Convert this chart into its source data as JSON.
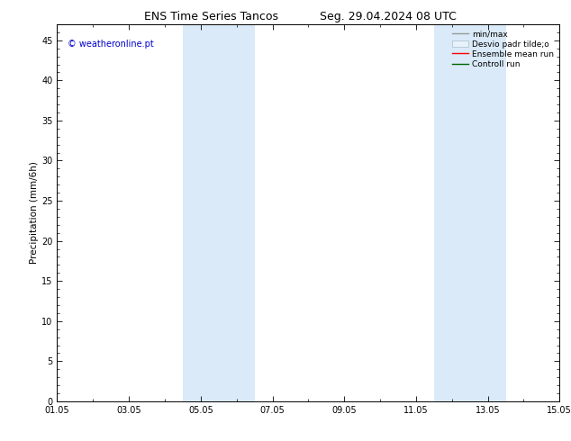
{
  "title_left": "ENS Time Series Tancos",
  "title_right": "Seg. 29.04.2024 08 UTC",
  "ylabel": "Precipitation (mm/6h)",
  "watermark": "© weatheronline.pt",
  "watermark_color": "#0000cc",
  "xlim_start": 0,
  "xlim_end": 14,
  "ylim_min": 0,
  "ylim_max": 47,
  "yticks": [
    0,
    5,
    10,
    15,
    20,
    25,
    30,
    35,
    40,
    45
  ],
  "xtick_labels": [
    "01.05",
    "03.05",
    "05.05",
    "07.05",
    "09.05",
    "11.05",
    "13.05",
    "15.05"
  ],
  "xtick_positions": [
    0,
    2,
    4,
    6,
    8,
    10,
    12,
    14
  ],
  "shaded_bands": [
    {
      "x_start": 3.5,
      "x_end": 5.5
    },
    {
      "x_start": 10.5,
      "x_end": 12.5
    }
  ],
  "shade_color": "#daeaf8",
  "background_color": "#ffffff",
  "legend_items": [
    {
      "label": "min/max",
      "color": "#999999",
      "lw": 1.0,
      "ls": "-",
      "type": "line"
    },
    {
      "label": "Desvio padr tilde;o",
      "color": "#ccddee",
      "lw": 4,
      "ls": "-",
      "type": "bar"
    },
    {
      "label": "Ensemble mean run",
      "color": "#ff0000",
      "lw": 1.0,
      "ls": "-",
      "type": "line"
    },
    {
      "label": "Controll run",
      "color": "#006600",
      "lw": 1.0,
      "ls": "-",
      "type": "line"
    }
  ],
  "title_fontsize": 9,
  "axis_fontsize": 7.5,
  "tick_fontsize": 7,
  "legend_fontsize": 6.5
}
